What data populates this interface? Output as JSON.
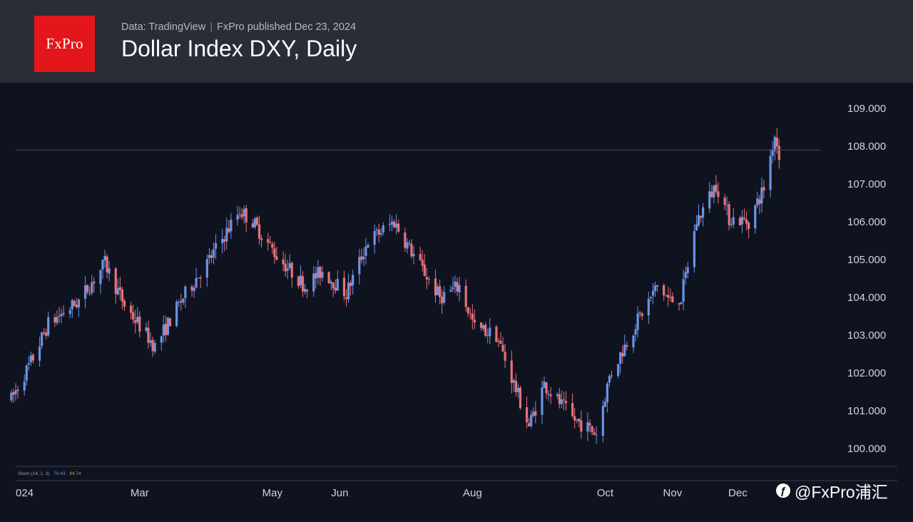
{
  "header": {
    "logo_text": "FxPro",
    "data_source": "Data: TradingView",
    "published": "FxPro published Dec 23, 2024",
    "title": "Dollar Index DXY, Daily"
  },
  "indicator": {
    "label": "Stoch (14, 1, 3)",
    "k_value": "79.43",
    "d_value": "84.74"
  },
  "watermark": {
    "icon": "weibo-icon",
    "text": "@FxPro浦汇"
  },
  "colors": {
    "background": "#0f1320",
    "header_bg": "#2a2d35",
    "brand_red": "#e3161b",
    "up_candle": "#6c93e4",
    "down_candle": "#e8727a",
    "axis_text": "#d1d4dc",
    "current_price_line": "#3c4f6e"
  },
  "chart_data": {
    "type": "candlestick",
    "title": "Dollar Index DXY, Daily",
    "ylim": [
      99.5,
      109.4
    ],
    "y_ticks": [
      "109.000",
      "108.000",
      "107.000",
      "106.000",
      "105.000",
      "104.000",
      "103.000",
      "102.000",
      "101.000",
      "100.000"
    ],
    "x_range": [
      "2024-01-04",
      "2025-01-03"
    ],
    "x_ticks": [
      {
        "label": "024",
        "date": "2024-01-01"
      },
      {
        "label": "Mar",
        "date": "2024-03-01"
      },
      {
        "label": "May",
        "date": "2024-05-01"
      },
      {
        "label": "Jun",
        "date": "2024-06-01"
      },
      {
        "label": "Aug",
        "date": "2024-08-01"
      },
      {
        "label": "Oct",
        "date": "2024-10-01"
      },
      {
        "label": "Nov",
        "date": "2024-11-01"
      },
      {
        "label": "Dec",
        "date": "2024-12-01"
      }
    ],
    "current_price": 107.9,
    "series": [
      {
        "date": "2024-01-02",
        "close": 101.3
      },
      {
        "date": "2024-01-12",
        "close": 102.4
      },
      {
        "date": "2024-01-19",
        "close": 103.3
      },
      {
        "date": "2024-02-02",
        "close": 103.9
      },
      {
        "date": "2024-02-14",
        "close": 104.9
      },
      {
        "date": "2024-02-23",
        "close": 103.8
      },
      {
        "date": "2024-03-08",
        "close": 102.7
      },
      {
        "date": "2024-03-21",
        "close": 104.0
      },
      {
        "date": "2024-03-28",
        "close": 104.6
      },
      {
        "date": "2024-04-01",
        "close": 104.9
      },
      {
        "date": "2024-04-16",
        "close": 106.3
      },
      {
        "date": "2024-04-22",
        "close": 106.0
      },
      {
        "date": "2024-05-03",
        "close": 105.1
      },
      {
        "date": "2024-05-16",
        "close": 104.3
      },
      {
        "date": "2024-05-24",
        "close": 104.7
      },
      {
        "date": "2024-06-04",
        "close": 104.1
      },
      {
        "date": "2024-06-14",
        "close": 105.5
      },
      {
        "date": "2024-06-26",
        "close": 106.0
      },
      {
        "date": "2024-07-03",
        "close": 105.3
      },
      {
        "date": "2024-07-17",
        "close": 104.0
      },
      {
        "date": "2024-07-26",
        "close": 104.3
      },
      {
        "date": "2024-08-02",
        "close": 103.2
      },
      {
        "date": "2024-08-12",
        "close": 103.0
      },
      {
        "date": "2024-08-27",
        "close": 100.6
      },
      {
        "date": "2024-09-03",
        "close": 101.7
      },
      {
        "date": "2024-09-16",
        "close": 100.8
      },
      {
        "date": "2024-09-27",
        "close": 100.4
      },
      {
        "date": "2024-10-03",
        "close": 101.9
      },
      {
        "date": "2024-10-15",
        "close": 103.3
      },
      {
        "date": "2024-10-25",
        "close": 104.3
      },
      {
        "date": "2024-10-31",
        "close": 103.9
      },
      {
        "date": "2024-11-05",
        "close": 104.0
      },
      {
        "date": "2024-11-12",
        "close": 106.0
      },
      {
        "date": "2024-11-21",
        "close": 107.0
      },
      {
        "date": "2024-11-27",
        "close": 106.1
      },
      {
        "date": "2024-12-06",
        "close": 106.0
      },
      {
        "date": "2024-12-13",
        "close": 106.9
      },
      {
        "date": "2024-12-18",
        "close": 108.3
      },
      {
        "date": "2024-12-20",
        "close": 107.8
      }
    ]
  }
}
